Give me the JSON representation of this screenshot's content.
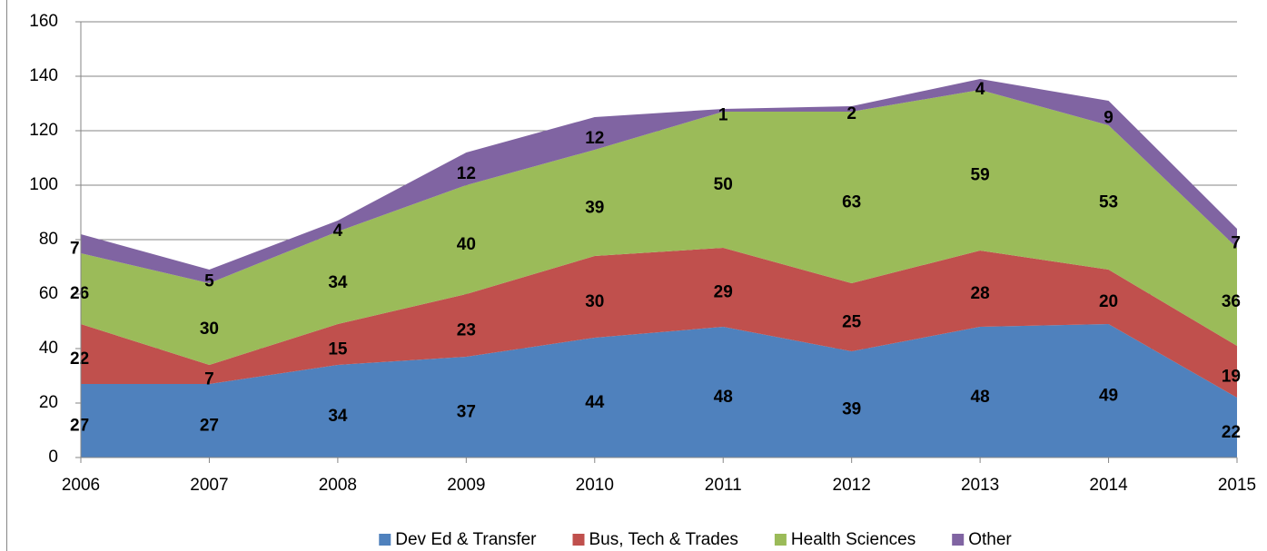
{
  "chart_data": {
    "type": "stacked_area",
    "categories": [
      "2006",
      "2007",
      "2008",
      "2009",
      "2010",
      "2011",
      "2012",
      "2013",
      "2014",
      "2015"
    ],
    "series": [
      {
        "name": "Dev Ed & Transfer",
        "color": "#4f81bd",
        "values": [
          27,
          27,
          34,
          37,
          44,
          48,
          39,
          48,
          49,
          22
        ]
      },
      {
        "name": "Bus, Tech & Trades",
        "color": "#c0504d",
        "values": [
          22,
          7,
          15,
          23,
          30,
          29,
          25,
          28,
          20,
          19
        ]
      },
      {
        "name": "Health Sciences",
        "color": "#9bbb59",
        "values": [
          26,
          30,
          34,
          40,
          39,
          50,
          63,
          59,
          53,
          36
        ]
      },
      {
        "name": "Other",
        "color": "#8064a2",
        "values": [
          7,
          5,
          4,
          12,
          12,
          1,
          2,
          4,
          9,
          7
        ]
      }
    ],
    "ylim": [
      0,
      160
    ],
    "yticks": [
      0,
      20,
      40,
      60,
      80,
      100,
      120,
      140,
      160
    ],
    "grid": true,
    "legend": "bottom"
  }
}
